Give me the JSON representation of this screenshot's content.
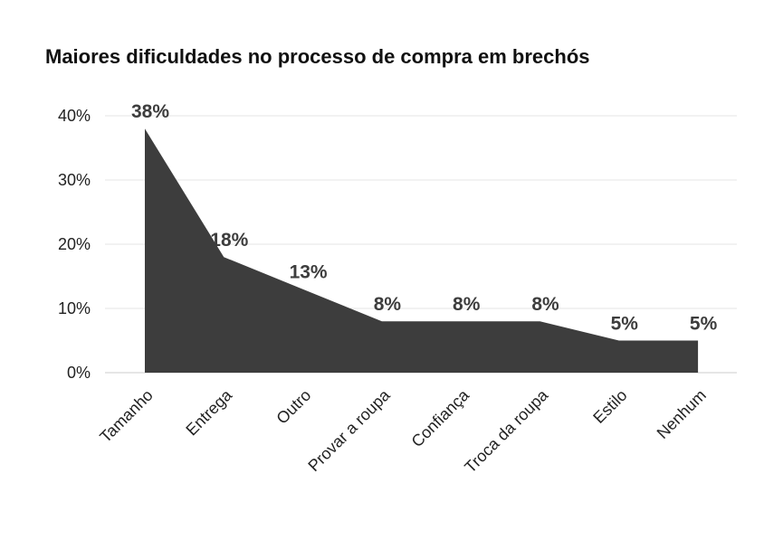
{
  "chart_data": {
    "type": "area",
    "title": "Maiores dificuldades no processo de compra em brechós",
    "xlabel": "",
    "ylabel": "",
    "categories": [
      "Tamanho",
      "Entrega",
      "Outro",
      "Provar a roupa",
      "Confiança",
      "Troca da roupa",
      "Estilo",
      "Nenhum"
    ],
    "values": [
      38,
      18,
      13,
      8,
      8,
      8,
      5,
      5
    ],
    "data_labels": [
      "38%",
      "18%",
      "13%",
      "8%",
      "8%",
      "8%",
      "5%",
      "5%"
    ],
    "yticks": [
      0,
      10,
      20,
      30,
      40
    ],
    "ytick_labels": [
      "0%",
      "10%",
      "20%",
      "30%",
      "40%"
    ],
    "ylim": [
      0,
      40
    ],
    "grid": true,
    "legend": "none",
    "fill_color": "#3d3d3d",
    "grid_color": "#e6e6e6"
  }
}
